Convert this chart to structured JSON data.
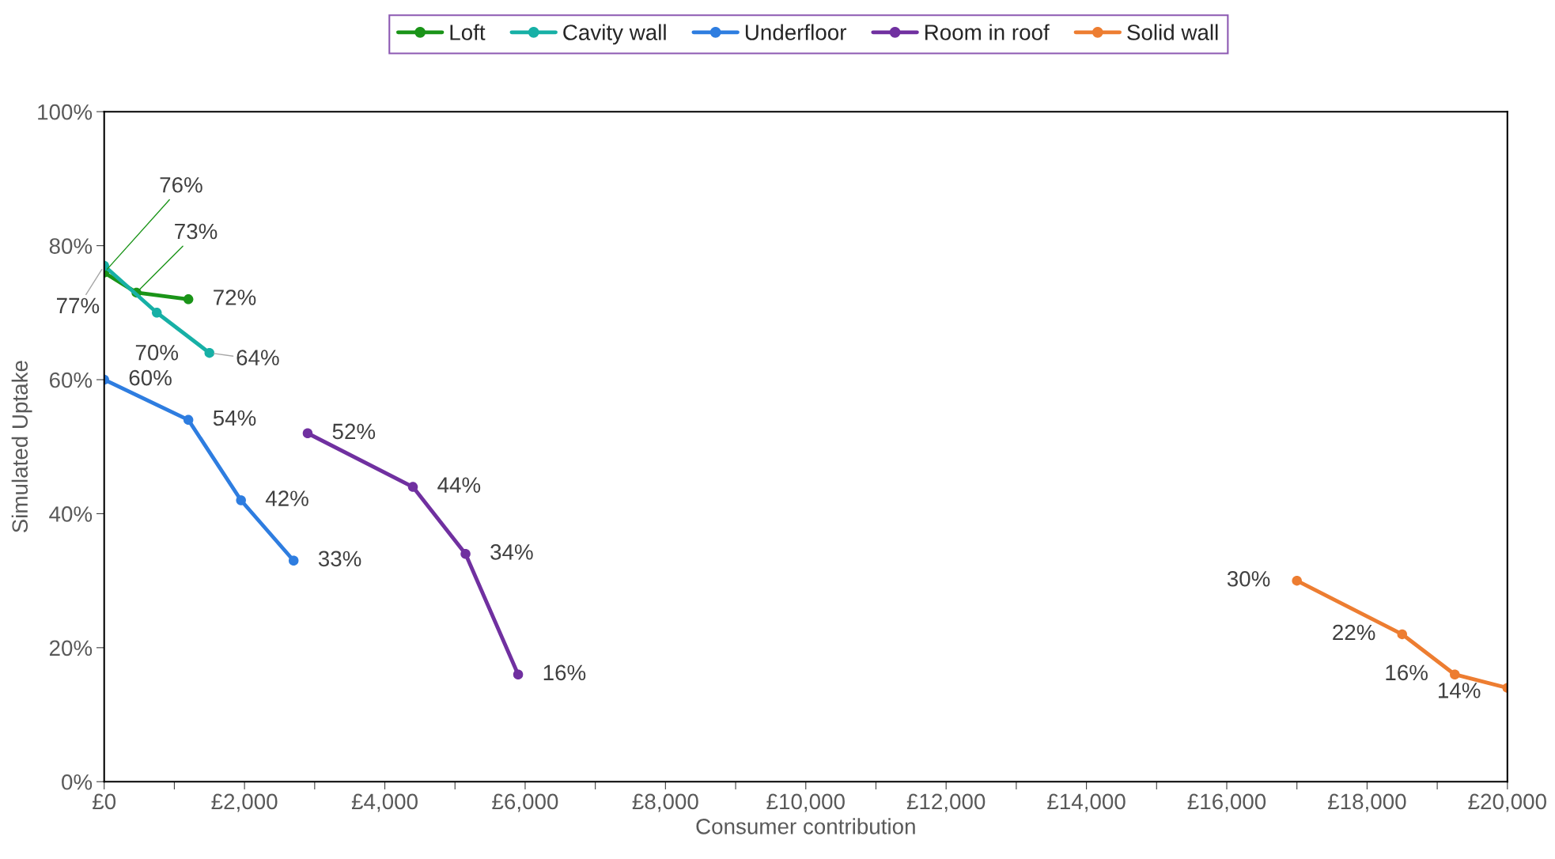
{
  "chart_data": {
    "type": "line",
    "xlabel": "Consumer contribution",
    "ylabel": "Simulated Uptake",
    "xlim": [
      0,
      20000
    ],
    "ylim": [
      0,
      100
    ],
    "xticks": [
      {
        "value": 0,
        "label": "£0"
      },
      {
        "value": 1000,
        "label": null
      },
      {
        "value": 2000,
        "label": "£2,000"
      },
      {
        "value": 3000,
        "label": null
      },
      {
        "value": 4000,
        "label": "£4,000"
      },
      {
        "value": 5000,
        "label": null
      },
      {
        "value": 6000,
        "label": "£6,000"
      },
      {
        "value": 7000,
        "label": null
      },
      {
        "value": 8000,
        "label": "£8,000"
      },
      {
        "value": 9000,
        "label": null
      },
      {
        "value": 10000,
        "label": "£10,000"
      },
      {
        "value": 11000,
        "label": null
      },
      {
        "value": 12000,
        "label": "£12,000"
      },
      {
        "value": 13000,
        "label": null
      },
      {
        "value": 14000,
        "label": "£14,000"
      },
      {
        "value": 15000,
        "label": null
      },
      {
        "value": 16000,
        "label": "£16,000"
      },
      {
        "value": 17000,
        "label": null
      },
      {
        "value": 18000,
        "label": "£18,000"
      },
      {
        "value": 19000,
        "label": null
      },
      {
        "value": 20000,
        "label": "£20,000"
      }
    ],
    "yticks": [
      {
        "value": 0,
        "label": "0%"
      },
      {
        "value": 20,
        "label": "20%"
      },
      {
        "value": 40,
        "label": "40%"
      },
      {
        "value": 60,
        "label": "60%"
      },
      {
        "value": 80,
        "label": "80%"
      },
      {
        "value": 100,
        "label": "100%"
      }
    ],
    "grid": false,
    "legend": "top",
    "marker": "circle",
    "line_style": "solid",
    "series": [
      {
        "name": "Loft",
        "color": "#1a9418",
        "x": [
          0,
          460,
          1200
        ],
        "values": [
          76,
          73,
          72
        ],
        "value_labels": [
          "76%",
          "73%",
          "72%"
        ]
      },
      {
        "name": "Cavity wall",
        "color": "#17b0a6",
        "x": [
          0,
          750,
          1500
        ],
        "values": [
          77,
          70,
          64
        ],
        "value_labels": [
          "77%",
          "70%",
          "64%"
        ]
      },
      {
        "name": "Underfloor",
        "color": "#2e7de0",
        "x": [
          0,
          1200,
          1950,
          2700
        ],
        "values": [
          60,
          54,
          42,
          33
        ],
        "value_labels": [
          "60%",
          "54%",
          "42%",
          "33%"
        ]
      },
      {
        "name": "Room in roof",
        "color": "#7030a0",
        "x": [
          2900,
          4400,
          5150,
          5900
        ],
        "values": [
          52,
          44,
          34,
          16
        ],
        "value_labels": [
          "52%",
          "44%",
          "34%",
          "16%"
        ]
      },
      {
        "name": "Solid wall",
        "color": "#ed7d31",
        "x": [
          17000,
          18500,
          19250,
          20000
        ],
        "values": [
          30,
          22,
          16,
          14
        ],
        "value_labels": [
          "30%",
          "22%",
          "16%",
          "14%"
        ]
      }
    ]
  }
}
